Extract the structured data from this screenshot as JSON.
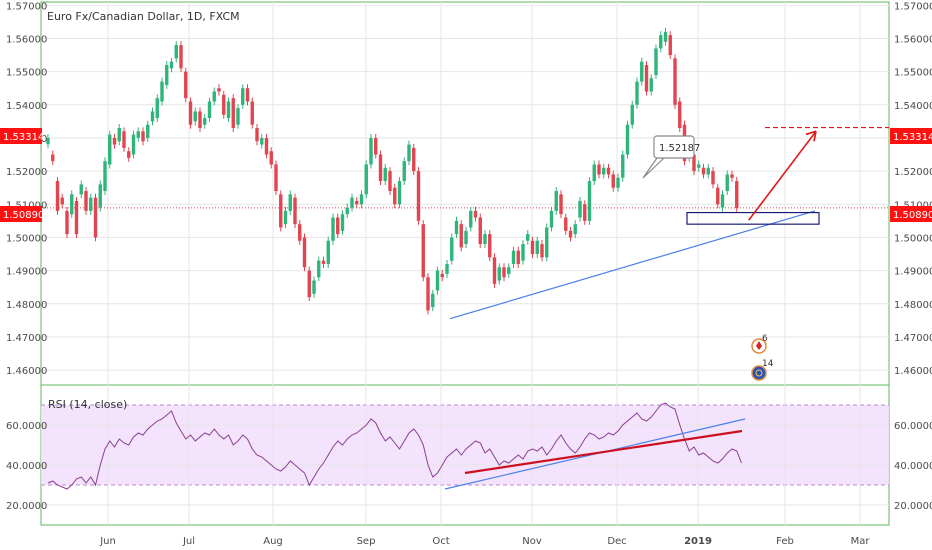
{
  "chart_data": {
    "type": "candlestick",
    "title": "Euro Fx/Canadian Dollar, 1D, FXCM",
    "x_axis": {
      "ticks": [
        "Jun",
        "Jul",
        "Aug",
        "Sep",
        "Oct",
        "Nov",
        "Dec",
        "2019",
        "Feb",
        "Mar"
      ]
    },
    "y_axis": {
      "ticks": [
        "1.57000",
        "1.56000",
        "1.55000",
        "1.54000",
        "1.53000",
        "1.52000",
        "1.51000",
        "1.50000",
        "1.49000",
        "1.48000",
        "1.47000",
        "1.46000"
      ],
      "ylim": [
        1.4555,
        1.571
      ]
    },
    "price_labels": {
      "target": {
        "value": "1.53314",
        "color": "#ff1111"
      },
      "last": {
        "value": "1.50890",
        "color": "#ff1111"
      }
    },
    "callout": {
      "text": "1.52187"
    },
    "events": [
      {
        "count": "6",
        "icon": "canada-flag-icon"
      },
      {
        "count": "14",
        "icon": "eu-flag-icon"
      }
    ],
    "series": [
      {
        "name": "EURCAD",
        "unit": "price",
        "points": [
          [
            1.5281,
            1.53
          ],
          [
            1.525,
            1.523
          ],
          [
            1.517,
            1.508
          ],
          [
            1.512,
            1.51
          ],
          [
            1.508,
            1.501
          ],
          [
            1.507,
            1.513
          ],
          [
            1.511,
            1.501
          ],
          [
            1.513,
            1.516
          ],
          [
            1.514,
            1.508
          ],
          [
            1.508,
            1.512
          ],
          [
            1.512,
            1.5
          ],
          [
            1.509,
            1.516
          ],
          [
            1.514,
            1.523
          ],
          [
            1.522,
            1.531
          ],
          [
            1.53,
            1.528
          ],
          [
            1.529,
            1.533
          ],
          [
            1.532,
            1.527
          ],
          [
            1.526,
            1.524
          ],
          [
            1.525,
            1.531
          ],
          [
            1.53,
            1.532
          ],
          [
            1.532,
            1.529
          ],
          [
            1.53,
            1.534
          ],
          [
            1.535,
            1.538
          ],
          [
            1.536,
            1.542
          ],
          [
            1.541,
            1.547
          ],
          [
            1.546,
            1.552
          ],
          [
            1.551,
            1.553
          ],
          [
            1.554,
            1.558
          ],
          [
            1.558,
            1.551
          ],
          [
            1.55,
            1.542
          ],
          [
            1.541,
            1.534
          ],
          [
            1.535,
            1.538
          ],
          [
            1.538,
            1.533
          ],
          [
            1.534,
            1.536
          ],
          [
            1.536,
            1.541
          ],
          [
            1.541,
            1.544
          ],
          [
            1.545,
            1.544
          ],
          [
            1.543,
            1.537
          ],
          [
            1.536,
            1.541
          ],
          [
            1.542,
            1.533
          ],
          [
            1.534,
            1.539
          ],
          [
            1.54,
            1.545
          ],
          [
            1.545,
            1.541
          ],
          [
            1.541,
            1.534
          ],
          [
            1.533,
            1.529
          ],
          [
            1.528,
            1.53
          ],
          [
            1.53,
            1.525
          ],
          [
            1.526,
            1.522
          ],
          [
            1.522,
            1.514
          ],
          [
            1.513,
            1.503
          ],
          [
            1.504,
            1.508
          ],
          [
            1.508,
            1.513
          ],
          [
            1.512,
            1.504
          ],
          [
            1.504,
            1.499
          ],
          [
            1.5,
            1.491
          ],
          [
            1.49,
            1.482
          ],
          [
            1.483,
            1.487
          ],
          [
            1.488,
            1.493
          ],
          [
            1.493,
            1.492
          ],
          [
            1.492,
            1.499
          ],
          [
            1.499,
            1.506
          ],
          [
            1.506,
            1.501
          ],
          [
            1.502,
            1.507
          ],
          [
            1.507,
            1.509
          ],
          [
            1.509,
            1.512
          ],
          [
            1.511,
            1.51
          ],
          [
            1.51,
            1.513
          ],
          [
            1.513,
            1.522
          ],
          [
            1.522,
            1.53
          ],
          [
            1.53,
            1.525
          ],
          [
            1.525,
            1.517
          ],
          [
            1.517,
            1.521
          ],
          [
            1.52,
            1.514
          ],
          [
            1.515,
            1.51
          ],
          [
            1.51,
            1.517
          ],
          [
            1.517,
            1.523
          ],
          [
            1.523,
            1.528
          ],
          [
            1.527,
            1.52
          ],
          [
            1.52,
            1.505
          ],
          [
            1.504,
            1.488
          ],
          [
            1.488,
            1.478
          ],
          [
            1.479,
            1.483
          ],
          [
            1.484,
            1.49
          ],
          [
            1.489,
            1.488
          ],
          [
            1.489,
            1.492
          ],
          [
            1.493,
            1.5
          ],
          [
            1.501,
            1.505
          ],
          [
            1.504,
            1.497
          ],
          [
            1.498,
            1.502
          ],
          [
            1.503,
            1.508
          ],
          [
            1.508,
            1.506
          ],
          [
            1.506,
            1.498
          ],
          [
            1.498,
            1.501
          ],
          [
            1.501,
            1.494
          ],
          [
            1.494,
            1.486
          ],
          [
            1.487,
            1.491
          ],
          [
            1.491,
            1.488
          ],
          [
            1.489,
            1.491
          ],
          [
            1.492,
            1.496
          ],
          [
            1.496,
            1.492
          ],
          [
            1.493,
            1.498
          ],
          [
            1.499,
            1.501
          ],
          [
            1.499,
            1.495
          ],
          [
            1.495,
            1.499
          ],
          [
            1.498,
            1.494
          ],
          [
            1.494,
            1.503
          ],
          [
            1.503,
            1.508
          ],
          [
            1.508,
            1.514
          ],
          [
            1.513,
            1.507
          ],
          [
            1.506,
            1.502
          ],
          [
            1.502,
            1.5
          ],
          [
            1.501,
            1.504
          ],
          [
            1.506,
            1.511
          ],
          [
            1.51,
            1.505
          ],
          [
            1.505,
            1.517
          ],
          [
            1.517,
            1.522
          ],
          [
            1.522,
            1.519
          ],
          [
            1.519,
            1.521
          ],
          [
            1.521,
            1.519
          ],
          [
            1.519,
            1.515
          ],
          [
            1.515,
            1.518
          ],
          [
            1.518,
            1.525
          ],
          [
            1.525,
            1.534
          ],
          [
            1.534,
            1.54
          ],
          [
            1.54,
            1.547
          ],
          [
            1.547,
            1.553
          ],
          [
            1.552,
            1.544
          ],
          [
            1.544,
            1.548
          ],
          [
            1.549,
            1.557
          ],
          [
            1.557,
            1.561
          ],
          [
            1.559,
            1.562
          ],
          [
            1.561,
            1.555
          ],
          [
            1.554,
            1.54
          ],
          [
            1.541,
            1.533
          ],
          [
            1.534,
            1.523
          ],
          [
            1.524,
            1.526
          ],
          [
            1.525,
            1.52
          ],
          [
            1.521,
            1.522
          ],
          [
            1.521,
            1.519
          ],
          [
            1.519,
            1.521
          ],
          [
            1.52,
            1.516
          ],
          [
            1.515,
            1.51
          ],
          [
            1.509,
            1.513
          ],
          [
            1.514,
            1.519
          ],
          [
            1.519,
            1.518
          ],
          [
            1.517,
            1.5089
          ]
        ]
      },
      {
        "name": "RSI (14, close)",
        "unit": "index",
        "ylim": [
          10,
          80
        ],
        "ticks": [
          "60.0000",
          "40.0000",
          "20.0000"
        ],
        "values": [
          31,
          32,
          30,
          29,
          28,
          30,
          33,
          34,
          31,
          34,
          30,
          40,
          48,
          52,
          49,
          53,
          51,
          50,
          54,
          56,
          55,
          58,
          60,
          62,
          63,
          65,
          67,
          61,
          57,
          53,
          55,
          52,
          54,
          56,
          55,
          58,
          55,
          53,
          55,
          50,
          52,
          55,
          53,
          48,
          45,
          44,
          42,
          40,
          38,
          37,
          39,
          42,
          40,
          38,
          36,
          30,
          34,
          38,
          41,
          45,
          49,
          52,
          50,
          53,
          55,
          56,
          58,
          60,
          63,
          61,
          56,
          52,
          54,
          51,
          48,
          52,
          56,
          58,
          55,
          50,
          40,
          34,
          36,
          40,
          44,
          46,
          48,
          45,
          48,
          50,
          52,
          51,
          46,
          48,
          44,
          40,
          42,
          41,
          43,
          45,
          43,
          47,
          48,
          47,
          49,
          45,
          48,
          52,
          55,
          51,
          48,
          46,
          49,
          53,
          56,
          55,
          53,
          54,
          56,
          55,
          57,
          60,
          62,
          64,
          66,
          63,
          62,
          64,
          67,
          70,
          71,
          69,
          68,
          60,
          53,
          47,
          49,
          45,
          46,
          44,
          42,
          41,
          43,
          46,
          48,
          47,
          41
        ]
      }
    ],
    "shapes": [
      {
        "type": "support-trendline",
        "color": "#4a80e8"
      },
      {
        "type": "support-zone",
        "color": "#1a1a7a"
      },
      {
        "type": "projection-arrow",
        "color": "#e01515"
      },
      {
        "type": "rsi-trendline",
        "color": "#4a80e8"
      },
      {
        "type": "rsi-trendline",
        "color": "#cc1020"
      }
    ]
  }
}
